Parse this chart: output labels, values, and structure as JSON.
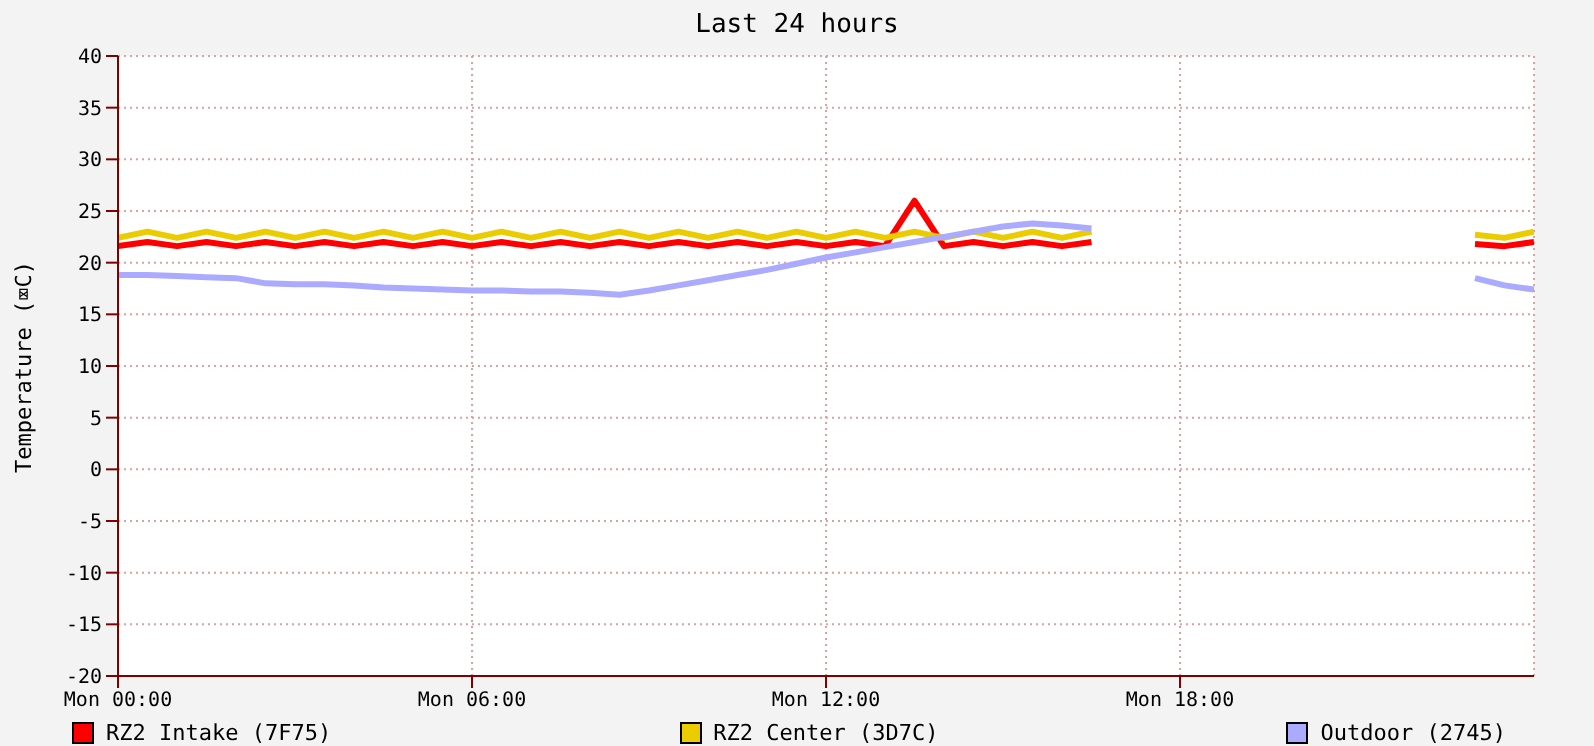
{
  "chart_data": {
    "type": "line",
    "title": "Last 24 hours",
    "ylabel": "Temperature (⌧C)",
    "categories": [
      "Mon 00:00",
      null,
      null,
      null,
      null,
      null,
      null,
      null,
      null,
      null,
      null,
      null,
      "Mon 06:00",
      null,
      null,
      null,
      null,
      null,
      null,
      null,
      null,
      null,
      null,
      null,
      "Mon 12:00",
      null,
      null,
      null,
      null,
      null,
      null,
      null,
      null,
      null,
      null,
      null,
      "Mon 18:00",
      null,
      null,
      null,
      null,
      null,
      null,
      null,
      null,
      null,
      null,
      null,
      null
    ],
    "ylim": [
      -20,
      40
    ],
    "yticks": [
      -20,
      -15,
      -10,
      -5,
      0,
      5,
      10,
      15,
      20,
      25,
      30,
      35,
      40
    ],
    "grid": true,
    "legend": "bottom",
    "marker": "none",
    "line_style": "solid",
    "series": [
      {
        "name": "RZ2 Intake (7F75)",
        "color": "#ff0000",
        "values": [
          21.6,
          22.0,
          21.6,
          22.0,
          21.6,
          22.0,
          21.6,
          22.0,
          21.6,
          22.0,
          21.6,
          22.0,
          21.6,
          22.0,
          21.6,
          22.0,
          21.6,
          22.0,
          21.6,
          22.0,
          21.6,
          22.0,
          21.6,
          22.0,
          21.6,
          22.0,
          21.6,
          26,
          21.6,
          22.0,
          21.6,
          22.0,
          21.6,
          22.0,
          null,
          null,
          null,
          null,
          null,
          null,
          null,
          null,
          null,
          null,
          null,
          null,
          21.8,
          21.6,
          22.0
        ]
      },
      {
        "name": "RZ2 Center (3D7C)",
        "color": "#eacc00",
        "values": [
          22.4,
          23.0,
          22.4,
          23.0,
          22.4,
          23.0,
          22.4,
          23.0,
          22.4,
          23.0,
          22.4,
          23.0,
          22.4,
          23.0,
          22.4,
          23.0,
          22.4,
          23.0,
          22.4,
          23.0,
          22.4,
          23.0,
          22.4,
          23.0,
          22.4,
          23.0,
          22.4,
          23.0,
          22.4,
          23.0,
          22.4,
          23.0,
          22.4,
          23.0,
          null,
          null,
          null,
          null,
          null,
          null,
          null,
          null,
          null,
          null,
          null,
          null,
          22.7,
          22.4,
          23.0
        ]
      },
      {
        "name": "Outdoor (2745)",
        "color": "#aaaaff",
        "values": [
          18.8,
          18.8,
          18.7,
          18.6,
          18.5,
          18.0,
          17.9,
          17.9,
          17.8,
          17.6,
          17.5,
          17.4,
          17.3,
          17.3,
          17.2,
          17.2,
          17.1,
          16.9,
          17.3,
          17.8,
          18.3,
          18.8,
          19.3,
          19.9,
          20.5,
          21.0,
          21.5,
          22.0,
          22.5,
          23.0,
          23.5,
          23.8,
          23.6,
          23.3,
          null,
          null,
          null,
          null,
          null,
          null,
          null,
          null,
          null,
          null,
          null,
          null,
          18.5,
          17.8,
          17.4
        ]
      }
    ]
  }
}
